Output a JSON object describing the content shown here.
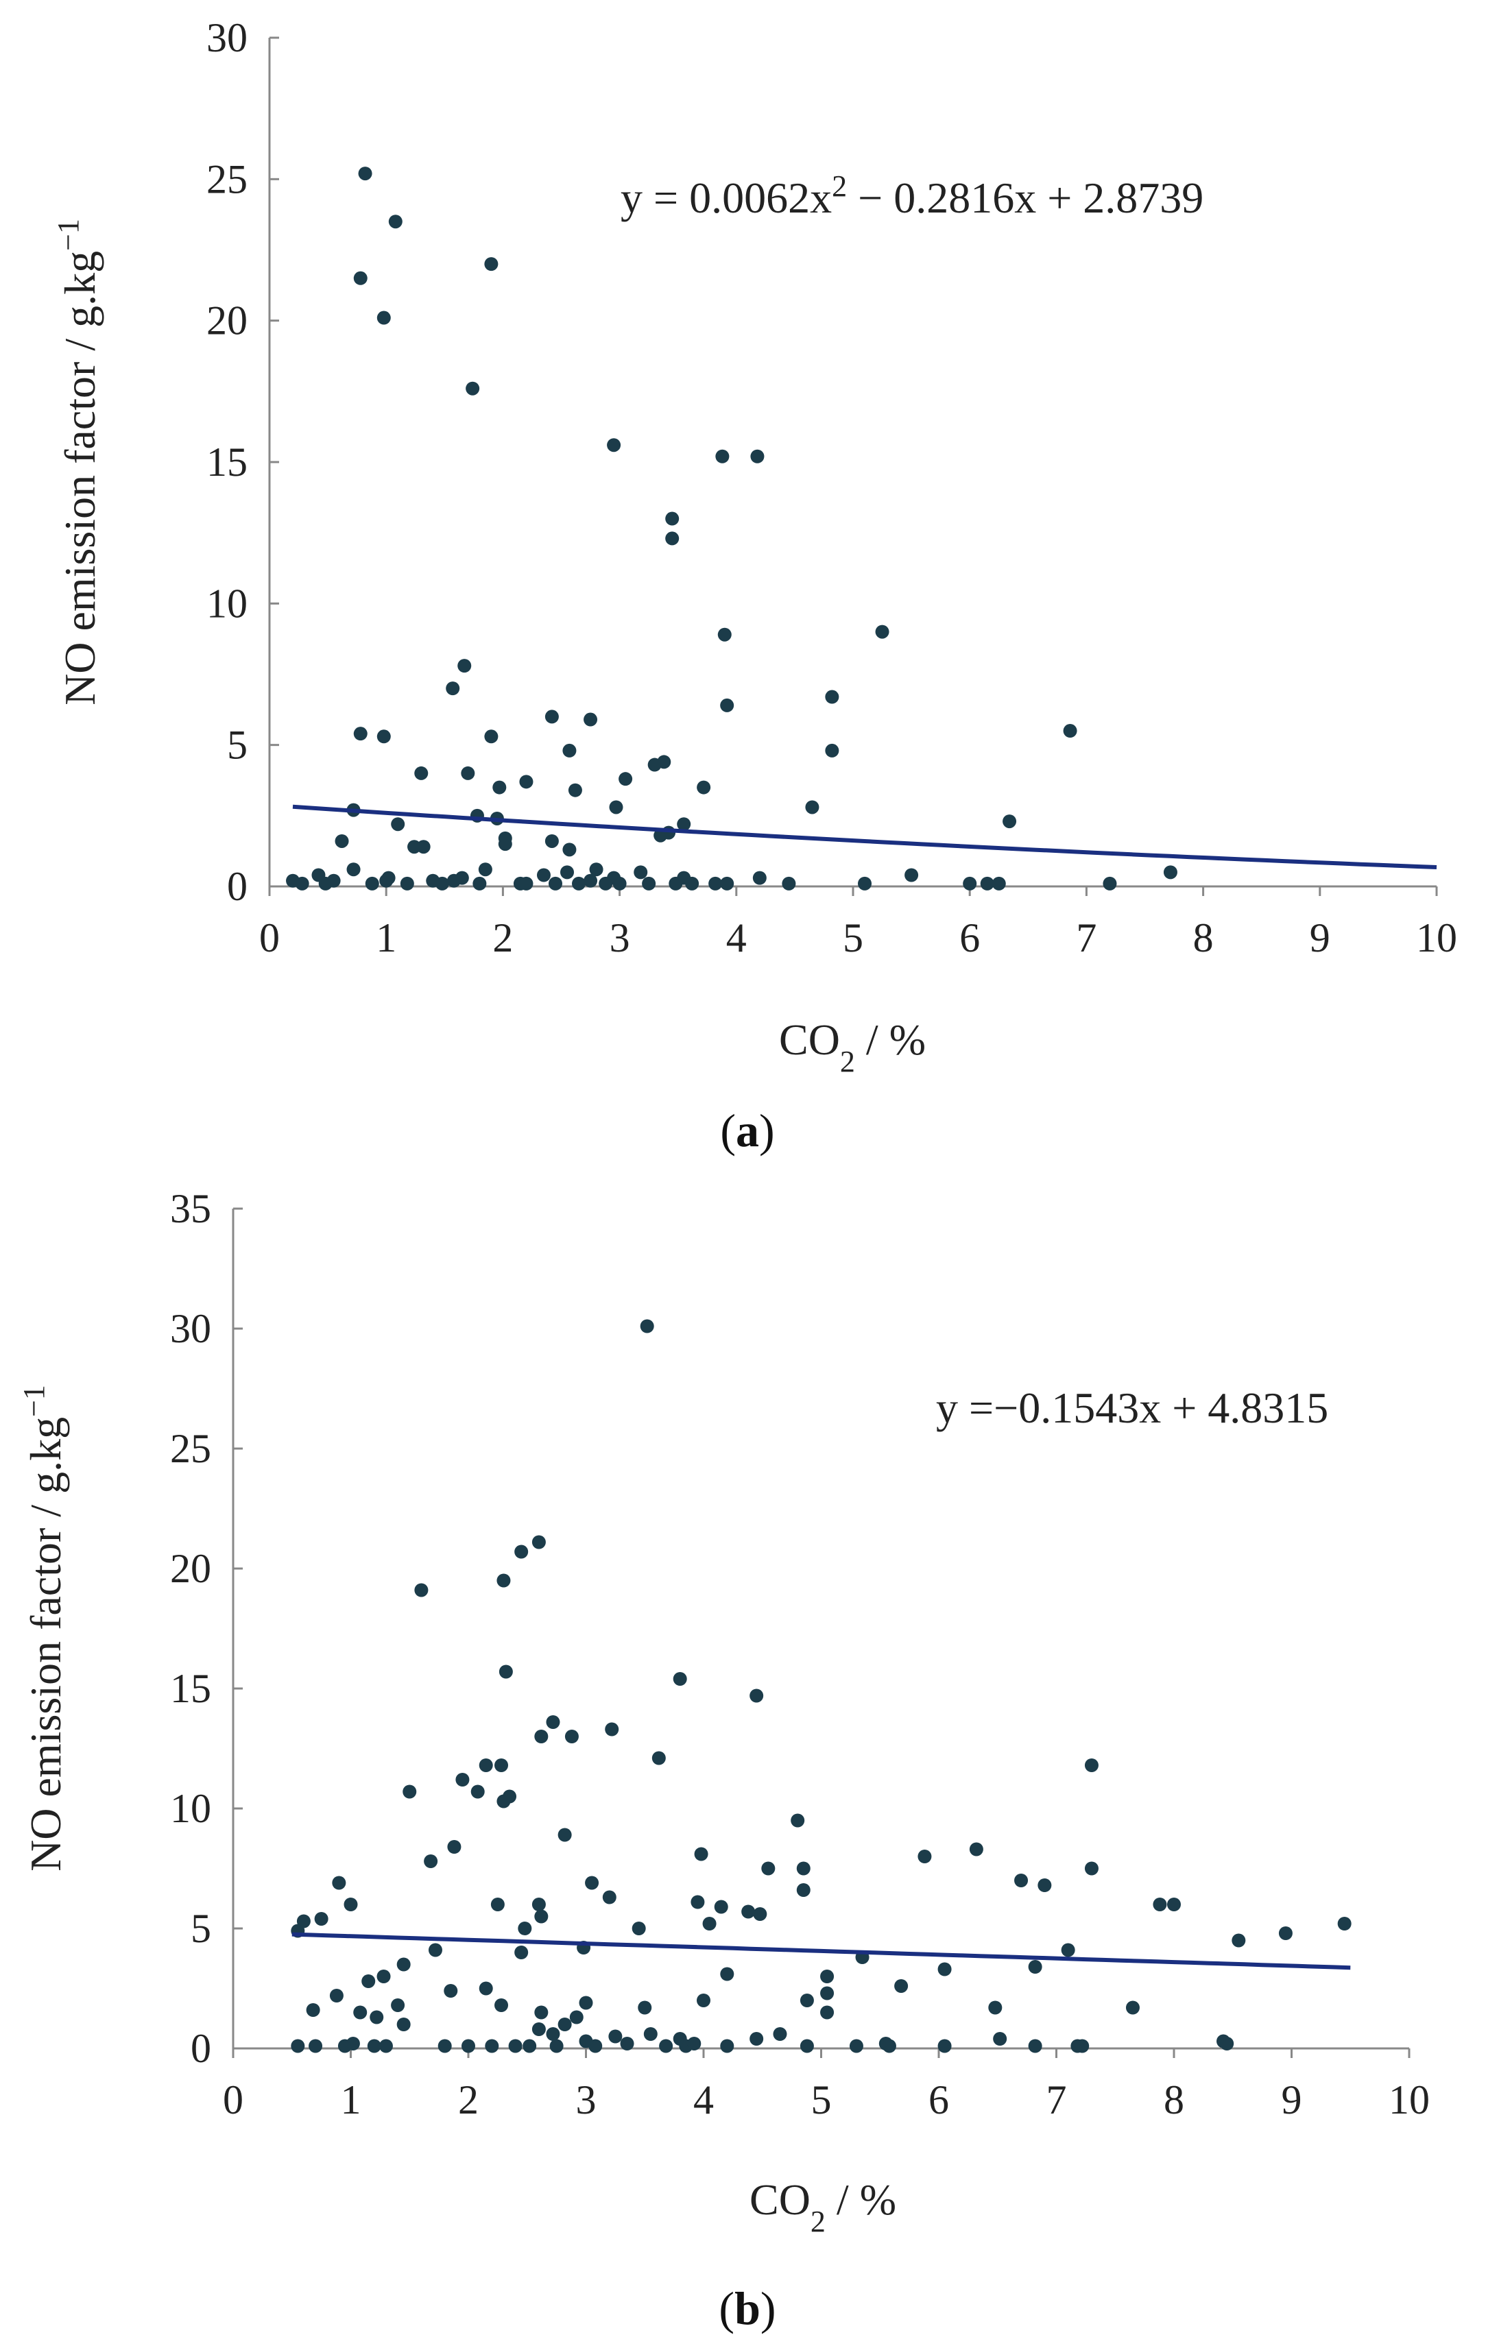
{
  "colors": {
    "point": "#1c3c4a",
    "trend": "#1a2f80",
    "axis": "#888888",
    "text": "#222222"
  },
  "chart_data": [
    {
      "type": "scatter",
      "panel_label": "a",
      "title": "",
      "xlabel": "CO",
      "xlabel_sub": "2",
      "xlabel_suffix": " / %",
      "ylabel": "NO emission factor / g.kg",
      "ylabel_sup": "−1",
      "xlim": [
        0,
        10
      ],
      "ylim": [
        0,
        30
      ],
      "x_ticks": [
        0,
        1,
        2,
        3,
        4,
        5,
        6,
        7,
        8,
        9,
        10
      ],
      "y_ticks": [
        0,
        5,
        10,
        15,
        20,
        25,
        30
      ],
      "grid": false,
      "equation": {
        "prefix": "y = 0.0062x",
        "sup": "2",
        "suffix": " − 0.2816x + 2.8739"
      },
      "trendline": {
        "kind": "quadratic",
        "coef": [
          0.0062,
          -0.2816,
          2.8739
        ],
        "x_range": [
          0.2,
          10
        ]
      },
      "points": [
        [
          0.82,
          25.2
        ],
        [
          1.08,
          23.5
        ],
        [
          0.78,
          21.5
        ],
        [
          0.98,
          20.1
        ],
        [
          1.9,
          22.0
        ],
        [
          1.74,
          17.6
        ],
        [
          2.95,
          15.6
        ],
        [
          3.88,
          15.2
        ],
        [
          4.18,
          15.2
        ],
        [
          3.45,
          13.0
        ],
        [
          3.45,
          12.3
        ],
        [
          3.9,
          8.9
        ],
        [
          5.25,
          9.0
        ],
        [
          1.67,
          7.8
        ],
        [
          1.57,
          7.0
        ],
        [
          4.82,
          6.7
        ],
        [
          3.92,
          6.4
        ],
        [
          2.42,
          6.0
        ],
        [
          2.75,
          5.9
        ],
        [
          6.86,
          5.5
        ],
        [
          0.78,
          5.4
        ],
        [
          0.98,
          5.3
        ],
        [
          1.9,
          5.3
        ],
        [
          4.82,
          4.8
        ],
        [
          2.57,
          4.8
        ],
        [
          3.38,
          4.4
        ],
        [
          3.3,
          4.3
        ],
        [
          1.3,
          4.0
        ],
        [
          1.7,
          4.0
        ],
        [
          3.05,
          3.8
        ],
        [
          2.2,
          3.7
        ],
        [
          3.72,
          3.5
        ],
        [
          1.97,
          3.5
        ],
        [
          2.62,
          3.4
        ],
        [
          4.65,
          2.8
        ],
        [
          2.97,
          2.8
        ],
        [
          0.72,
          2.7
        ],
        [
          1.78,
          2.5
        ],
        [
          1.95,
          2.4
        ],
        [
          6.34,
          2.3
        ],
        [
          1.1,
          2.2
        ],
        [
          3.55,
          2.2
        ],
        [
          3.42,
          1.9
        ],
        [
          3.35,
          1.8
        ],
        [
          2.02,
          1.7
        ],
        [
          2.42,
          1.6
        ],
        [
          0.62,
          1.6
        ],
        [
          2.02,
          1.5
        ],
        [
          1.32,
          1.4
        ],
        [
          1.24,
          1.4
        ],
        [
          2.57,
          1.3
        ],
        [
          0.72,
          0.6
        ],
        [
          1.85,
          0.6
        ],
        [
          2.55,
          0.5
        ],
        [
          2.8,
          0.6
        ],
        [
          3.18,
          0.5
        ],
        [
          7.72,
          0.5
        ],
        [
          2.35,
          0.4
        ],
        [
          0.42,
          0.4
        ],
        [
          1.65,
          0.3
        ],
        [
          2.95,
          0.3
        ],
        [
          3.55,
          0.3
        ],
        [
          4.2,
          0.3
        ],
        [
          5.5,
          0.4
        ],
        [
          1.02,
          0.3
        ],
        [
          0.2,
          0.2
        ],
        [
          0.28,
          0.1
        ],
        [
          0.48,
          0.1
        ],
        [
          0.88,
          0.1
        ],
        [
          1.0,
          0.2
        ],
        [
          1.18,
          0.1
        ],
        [
          1.48,
          0.1
        ],
        [
          1.58,
          0.2
        ],
        [
          1.8,
          0.1
        ],
        [
          2.15,
          0.1
        ],
        [
          2.45,
          0.1
        ],
        [
          2.65,
          0.1
        ],
        [
          2.75,
          0.2
        ],
        [
          3.0,
          0.1
        ],
        [
          3.25,
          0.1
        ],
        [
          3.62,
          0.1
        ],
        [
          3.82,
          0.1
        ],
        [
          4.45,
          0.1
        ],
        [
          5.1,
          0.1
        ],
        [
          6.0,
          0.1
        ],
        [
          6.15,
          0.1
        ],
        [
          6.25,
          0.1
        ],
        [
          7.2,
          0.1
        ],
        [
          3.48,
          0.1
        ],
        [
          2.88,
          0.1
        ],
        [
          1.4,
          0.2
        ],
        [
          0.55,
          0.2
        ],
        [
          3.92,
          0.1
        ],
        [
          2.2,
          0.1
        ]
      ]
    },
    {
      "type": "scatter",
      "panel_label": "b",
      "title": "",
      "xlabel": "CO",
      "xlabel_sub": "2",
      "xlabel_suffix": " / %",
      "ylabel": "NO emission factor / g.kg",
      "ylabel_sup": "−1",
      "xlim": [
        0,
        10
      ],
      "ylim": [
        0,
        35
      ],
      "x_ticks": [
        0,
        1,
        2,
        3,
        4,
        5,
        6,
        7,
        8,
        9,
        10
      ],
      "y_ticks": [
        0,
        5,
        10,
        15,
        20,
        25,
        30,
        35
      ],
      "grid": false,
      "equation": {
        "prefix": "y =−0.1543x + 4.8315",
        "sup": "",
        "suffix": ""
      },
      "trendline": {
        "kind": "linear",
        "coef": [
          -0.1543,
          4.8315
        ],
        "x_range": [
          0.5,
          9.5
        ]
      },
      "points": [
        [
          3.52,
          30.1
        ],
        [
          2.6,
          21.1
        ],
        [
          2.45,
          20.7
        ],
        [
          1.6,
          19.1
        ],
        [
          2.3,
          19.5
        ],
        [
          2.32,
          15.7
        ],
        [
          3.8,
          15.4
        ],
        [
          4.45,
          14.7
        ],
        [
          2.72,
          13.6
        ],
        [
          3.22,
          13.3
        ],
        [
          2.62,
          13.0
        ],
        [
          2.88,
          13.0
        ],
        [
          3.62,
          12.1
        ],
        [
          7.3,
          11.8
        ],
        [
          2.28,
          11.8
        ],
        [
          2.15,
          11.8
        ],
        [
          1.95,
          11.2
        ],
        [
          2.08,
          10.7
        ],
        [
          2.35,
          10.5
        ],
        [
          1.5,
          10.7
        ],
        [
          2.3,
          10.3
        ],
        [
          4.8,
          9.5
        ],
        [
          2.82,
          8.9
        ],
        [
          6.32,
          8.3
        ],
        [
          1.88,
          8.4
        ],
        [
          3.98,
          8.1
        ],
        [
          1.68,
          7.8
        ],
        [
          5.88,
          8.0
        ],
        [
          4.55,
          7.5
        ],
        [
          4.85,
          7.5
        ],
        [
          7.3,
          7.5
        ],
        [
          6.7,
          7.0
        ],
        [
          0.9,
          6.9
        ],
        [
          3.05,
          6.9
        ],
        [
          6.9,
          6.8
        ],
        [
          4.85,
          6.6
        ],
        [
          3.2,
          6.3
        ],
        [
          2.25,
          6.0
        ],
        [
          2.6,
          6.0
        ],
        [
          1.0,
          6.0
        ],
        [
          3.95,
          6.1
        ],
        [
          8.0,
          6.0
        ],
        [
          7.88,
          6.0
        ],
        [
          4.15,
          5.9
        ],
        [
          4.38,
          5.7
        ],
        [
          4.48,
          5.6
        ],
        [
          2.62,
          5.5
        ],
        [
          0.75,
          5.4
        ],
        [
          0.6,
          5.3
        ],
        [
          4.05,
          5.2
        ],
        [
          9.45,
          5.2
        ],
        [
          2.48,
          5.0
        ],
        [
          3.45,
          5.0
        ],
        [
          0.55,
          4.9
        ],
        [
          8.95,
          4.8
        ],
        [
          8.55,
          4.5
        ],
        [
          2.98,
          4.2
        ],
        [
          1.72,
          4.1
        ],
        [
          7.1,
          4.1
        ],
        [
          2.45,
          4.0
        ],
        [
          5.35,
          3.8
        ],
        [
          1.45,
          3.5
        ],
        [
          6.82,
          3.4
        ],
        [
          6.05,
          3.3
        ],
        [
          1.28,
          3.0
        ],
        [
          4.2,
          3.1
        ],
        [
          1.15,
          2.8
        ],
        [
          5.05,
          3.0
        ],
        [
          5.68,
          2.6
        ],
        [
          1.85,
          2.4
        ],
        [
          2.15,
          2.5
        ],
        [
          5.05,
          2.3
        ],
        [
          0.88,
          2.2
        ],
        [
          4.0,
          2.0
        ],
        [
          2.28,
          1.8
        ],
        [
          3.0,
          1.9
        ],
        [
          4.88,
          2.0
        ],
        [
          1.4,
          1.8
        ],
        [
          3.5,
          1.7
        ],
        [
          6.48,
          1.7
        ],
        [
          7.65,
          1.7
        ],
        [
          0.68,
          1.6
        ],
        [
          1.08,
          1.5
        ],
        [
          5.05,
          1.5
        ],
        [
          2.62,
          1.5
        ],
        [
          1.22,
          1.3
        ],
        [
          2.92,
          1.3
        ],
        [
          1.45,
          1.0
        ],
        [
          2.82,
          1.0
        ],
        [
          2.6,
          0.8
        ],
        [
          2.72,
          0.6
        ],
        [
          3.25,
          0.5
        ],
        [
          3.55,
          0.6
        ],
        [
          4.65,
          0.6
        ],
        [
          6.52,
          0.4
        ],
        [
          8.42,
          0.3
        ],
        [
          3.8,
          0.4
        ],
        [
          4.45,
          0.4
        ],
        [
          3.0,
          0.3
        ],
        [
          0.55,
          0.1
        ],
        [
          0.7,
          0.1
        ],
        [
          0.95,
          0.1
        ],
        [
          1.2,
          0.1
        ],
        [
          1.3,
          0.1
        ],
        [
          1.8,
          0.1
        ],
        [
          2.0,
          0.1
        ],
        [
          2.2,
          0.1
        ],
        [
          2.4,
          0.1
        ],
        [
          2.52,
          0.1
        ],
        [
          2.75,
          0.1
        ],
        [
          3.08,
          0.1
        ],
        [
          3.35,
          0.2
        ],
        [
          3.68,
          0.1
        ],
        [
          3.85,
          0.1
        ],
        [
          4.2,
          0.1
        ],
        [
          5.3,
          0.1
        ],
        [
          5.58,
          0.1
        ],
        [
          6.05,
          0.1
        ],
        [
          6.82,
          0.1
        ],
        [
          7.18,
          0.1
        ],
        [
          7.22,
          0.1
        ],
        [
          8.45,
          0.2
        ],
        [
          5.55,
          0.2
        ],
        [
          4.88,
          0.1
        ],
        [
          1.02,
          0.2
        ],
        [
          3.92,
          0.2
        ]
      ]
    }
  ]
}
